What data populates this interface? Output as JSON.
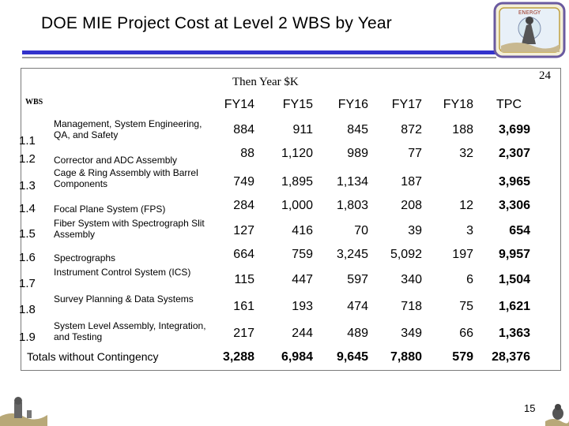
{
  "title": "DOE MIE Project Cost at Level 2 WBS by Year",
  "subtitle": "Then Year $K",
  "slide_number_top": "24",
  "page_number": "15",
  "logo_text": "ENERGY",
  "wbs_header": "WBS",
  "columns": [
    "FY14",
    "FY15",
    "FY16",
    "FY17",
    "FY18",
    "TPC"
  ],
  "rows": [
    {
      "num": "1.1",
      "desc": "Management, System Engineering, QA, and Safety",
      "values": [
        "884",
        "911",
        "845",
        "872",
        "188",
        "3,699"
      ]
    },
    {
      "num": "1.2",
      "desc": "Corrector and ADC Assembly",
      "values": [
        "88",
        "1,120",
        "989",
        "77",
        "32",
        "2,307"
      ]
    },
    {
      "num": "1.3",
      "desc": "Cage & Ring Assembly with Barrel Components",
      "values": [
        "749",
        "1,895",
        "1,134",
        "187",
        "",
        "3,965"
      ]
    },
    {
      "num": "1.4",
      "desc": "Focal Plane System (FPS)",
      "values": [
        "284",
        "1,000",
        "1,803",
        "208",
        "12",
        "3,306"
      ]
    },
    {
      "num": "1.5",
      "desc": "Fiber System with Spectrograph Slit Assembly",
      "values": [
        "127",
        "416",
        "70",
        "39",
        "3",
        "654"
      ]
    },
    {
      "num": "1.6",
      "desc": "Spectrographs",
      "values": [
        "664",
        "759",
        "3,245",
        "5,092",
        "197",
        "9,957"
      ]
    },
    {
      "num": "1.7",
      "desc": "Instrument Control System (ICS)",
      "values": [
        "115",
        "447",
        "597",
        "340",
        "6",
        "1,504"
      ]
    },
    {
      "num": "1.8",
      "desc": "Survey Planning & Data Systems",
      "values": [
        "161",
        "193",
        "474",
        "718",
        "75",
        "1,621"
      ]
    },
    {
      "num": "1.9",
      "desc": "System Level Assembly, Integration, and Testing",
      "values": [
        "217",
        "244",
        "489",
        "349",
        "66",
        "1,363"
      ]
    }
  ],
  "totals": {
    "label": "Totals without Contingency",
    "values": [
      "3,288",
      "6,984",
      "9,645",
      "7,880",
      "579",
      "28,376"
    ]
  },
  "colors": {
    "accent_blue": "#3333cc",
    "rule_gray": "#9a9a9a"
  }
}
